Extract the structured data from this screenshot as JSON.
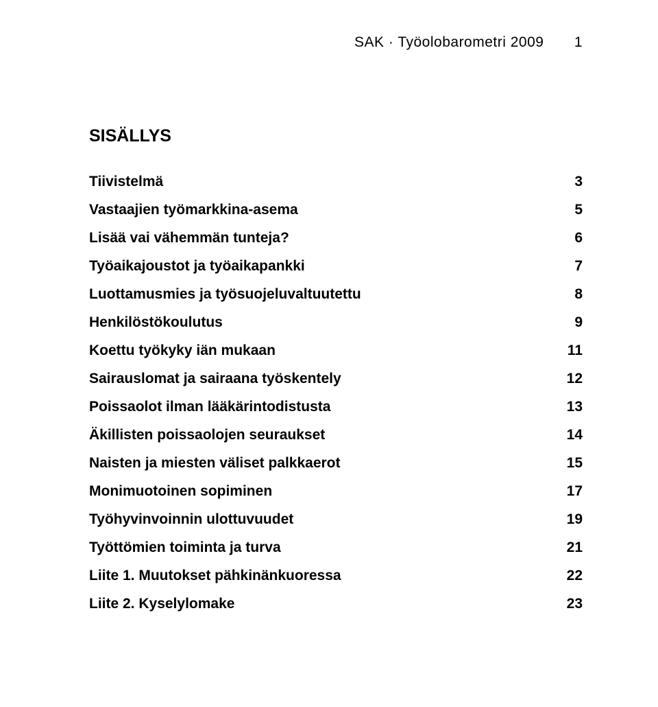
{
  "header": {
    "text": "SAK · Työolobarometri 2009",
    "page_number": "1"
  },
  "title": "SISÄLLYS",
  "toc": [
    {
      "label": "Tiivistelmä",
      "page": "3"
    },
    {
      "label": "Vastaajien työmarkkina-asema",
      "page": "5"
    },
    {
      "label": "Lisää vai vähemmän tunteja?",
      "page": "6"
    },
    {
      "label": "Työaikajoustot ja työaikapankki",
      "page": "7"
    },
    {
      "label": "Luottamusmies ja työsuojeluvaltuutettu",
      "page": "8"
    },
    {
      "label": "Henkilöstökoulutus",
      "page": "9"
    },
    {
      "label": "Koettu työkyky iän mukaan",
      "page": "11"
    },
    {
      "label": "Sairauslomat ja sairaana työskentely",
      "page": "12"
    },
    {
      "label": "Poissaolot ilman lääkärintodistusta",
      "page": "13"
    },
    {
      "label": "Äkillisten poissaolojen seuraukset",
      "page": "14"
    },
    {
      "label": "Naisten ja miesten väliset palkkaerot",
      "page": "15"
    },
    {
      "label": "Monimuotoinen sopiminen",
      "page": "17"
    },
    {
      "label": "Työhyvinvoinnin ulottuvuudet",
      "page": "19"
    },
    {
      "label": "Työttömien toiminta ja turva",
      "page": "21"
    },
    {
      "label": "Liite 1. Muutokset pähkinänkuoressa",
      "page": "22"
    },
    {
      "label": "Liite 2. Kyselylomake",
      "page": "23"
    }
  ]
}
